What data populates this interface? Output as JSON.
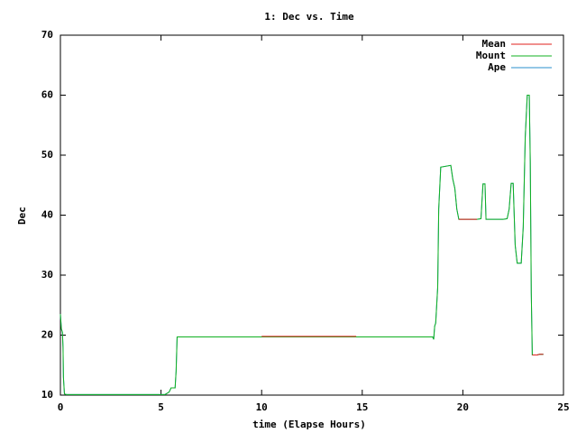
{
  "chart_data": {
    "type": "line",
    "title": "1: Dec vs. Time",
    "x_label": "time (Elapse Hours)",
    "y_label": "Dec",
    "x": [
      0,
      0.05,
      0.1,
      0.13,
      0.15,
      0.2,
      0.3,
      5.2,
      5.4,
      5.5,
      5.7,
      5.75,
      5.8,
      10,
      14.7,
      18.5,
      18.55,
      18.6,
      18.65,
      18.75,
      18.8,
      18.9,
      19.4,
      19.5,
      19.6,
      19.7,
      19.8,
      20.7,
      20.9,
      21.0,
      21.1,
      21.15,
      22.0,
      22.2,
      22.3,
      22.4,
      22.5,
      22.6,
      22.7,
      22.9,
      23.0,
      23.1,
      23.2,
      23.3,
      23.35,
      23.4,
      23.45,
      23.7,
      23.8,
      24.0
    ],
    "series": [
      {
        "name": "Mean",
        "color": "#e0201c",
        "values": [
          null,
          null,
          null,
          null,
          null,
          null,
          null,
          null,
          null,
          null,
          null,
          null,
          null,
          19.8,
          19.8,
          null,
          null,
          null,
          null,
          null,
          null,
          null,
          null,
          null,
          null,
          null,
          39.3,
          39.3,
          null,
          null,
          null,
          null,
          null,
          null,
          null,
          null,
          null,
          null,
          null,
          null,
          null,
          null,
          null,
          null,
          null,
          null,
          16.7,
          16.7,
          16.8,
          16.8
        ]
      },
      {
        "name": "Mount",
        "color": "#10b020",
        "values": [
          23.5,
          21,
          20.5,
          18,
          13,
          10.2,
          10.1,
          10.1,
          10.5,
          11.2,
          11.2,
          14,
          19.7,
          19.7,
          19.7,
          19.7,
          19.3,
          21.5,
          22,
          28,
          41,
          48,
          48.3,
          46,
          44.5,
          41,
          39.3,
          39.3,
          39.4,
          45.2,
          45.2,
          39.3,
          39.3,
          39.4,
          41,
          45.3,
          45.3,
          35,
          32,
          32,
          38,
          53,
          60,
          60,
          49,
          27,
          16.7,
          16.7,
          16.8,
          16.8
        ]
      },
      {
        "name": "Ape",
        "color": "#2a8fcc",
        "values": [
          23.5,
          21,
          20.5,
          18,
          13,
          10.2,
          10.1,
          10.1,
          10.5,
          11.2,
          11.2,
          14,
          19.7,
          19.7,
          19.7,
          19.7,
          19.3,
          21.5,
          22,
          28,
          41,
          48,
          48.3,
          46,
          44.5,
          41,
          39.3,
          39.3,
          39.4,
          45.2,
          45.2,
          39.3,
          39.3,
          39.4,
          41,
          45.3,
          45.3,
          35,
          32,
          32,
          38,
          53,
          60,
          60,
          49,
          27,
          16.7,
          16.7,
          16.8,
          16.8
        ]
      }
    ],
    "xlim": [
      0,
      25
    ],
    "xticks": [
      0,
      5,
      10,
      15,
      20,
      25
    ],
    "ylim": [
      10,
      70
    ],
    "yticks": [
      10,
      20,
      30,
      40,
      50,
      60,
      70
    ],
    "legend": "top-right",
    "grid": false
  }
}
